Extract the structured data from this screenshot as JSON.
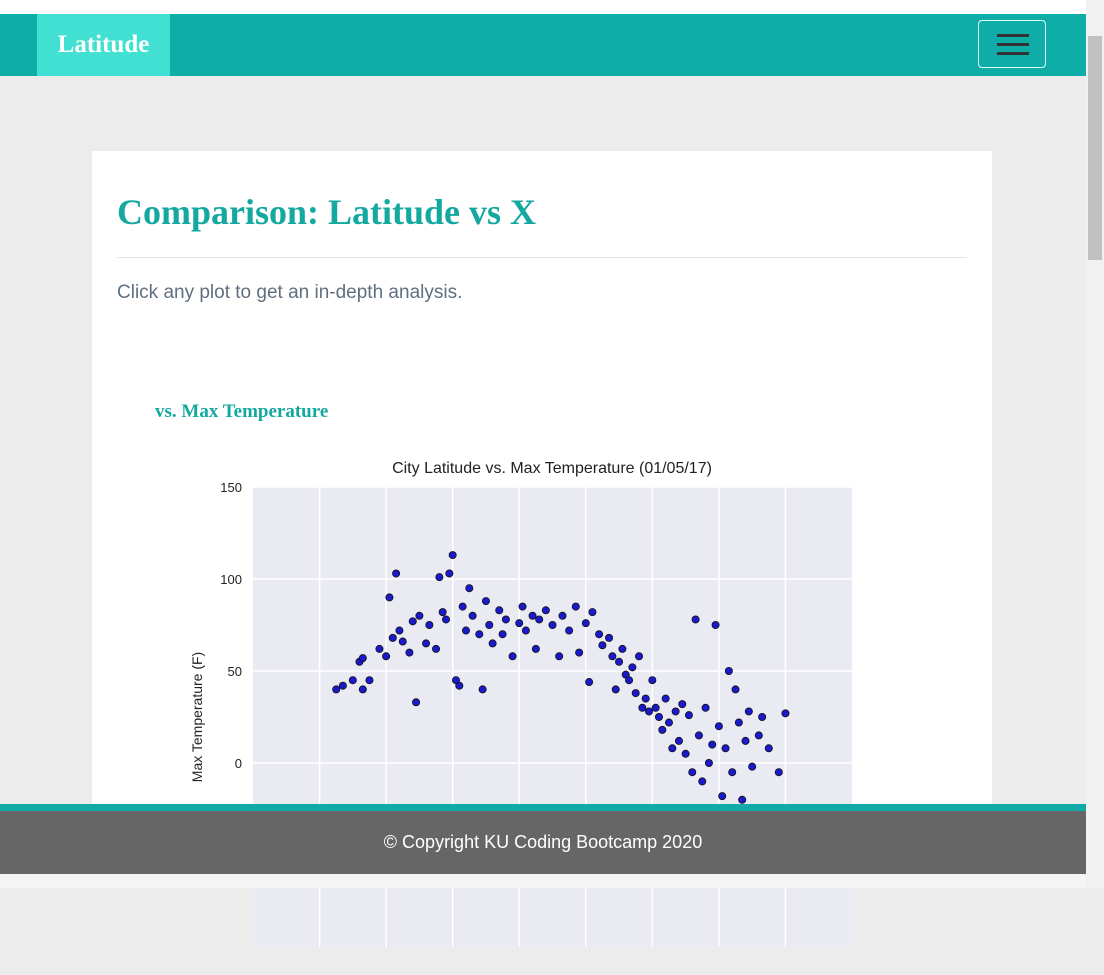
{
  "navbar": {
    "brand": "Latitude"
  },
  "header": {
    "title": "Comparison: Latitude vs X",
    "intro": "Click any plot to get an in-depth analysis."
  },
  "plot": {
    "heading": "vs. Max Temperature"
  },
  "chart_data": {
    "type": "scatter",
    "title": "City Latitude vs. Max Temperature (01/05/17)",
    "y_label": "Max Temperature (F)",
    "x": [
      -55,
      -53,
      -50,
      -48,
      -47,
      -47,
      -45,
      -42,
      -40,
      -39,
      -38,
      -37,
      -36,
      -35,
      -33,
      -32,
      -31,
      -30,
      -28,
      -27,
      -25,
      -24,
      -23,
      -22,
      -21,
      -20,
      -19,
      -18,
      -17,
      -16,
      -15,
      -14,
      -12,
      -11,
      -10,
      -9,
      -8,
      -6,
      -5,
      -4,
      -2,
      0,
      1,
      2,
      4,
      5,
      6,
      8,
      10,
      12,
      13,
      15,
      17,
      18,
      20,
      21,
      22,
      24,
      25,
      27,
      28,
      29,
      30,
      31,
      32,
      33,
      34,
      35,
      36,
      37,
      38,
      39,
      40,
      41,
      42,
      43,
      44,
      45,
      46,
      47,
      48,
      49,
      50,
      51,
      52,
      53,
      54,
      55,
      56,
      57,
      58,
      59,
      60,
      61,
      62,
      63,
      64,
      65,
      66,
      67,
      68,
      69,
      70,
      72,
      73,
      75,
      78,
      80
    ],
    "values": [
      40,
      42,
      45,
      55,
      57,
      40,
      45,
      62,
      58,
      90,
      68,
      103,
      72,
      66,
      60,
      77,
      33,
      80,
      65,
      75,
      62,
      101,
      82,
      78,
      103,
      113,
      45,
      42,
      85,
      72,
      95,
      80,
      70,
      40,
      88,
      75,
      65,
      83,
      70,
      78,
      58,
      76,
      85,
      72,
      80,
      62,
      78,
      83,
      75,
      58,
      80,
      72,
      85,
      60,
      76,
      44,
      82,
      70,
      64,
      68,
      58,
      40,
      55,
      62,
      48,
      45,
      52,
      38,
      58,
      30,
      35,
      28,
      45,
      30,
      25,
      18,
      35,
      22,
      8,
      28,
      12,
      32,
      5,
      26,
      -5,
      78,
      15,
      -10,
      30,
      0,
      10,
      75,
      20,
      -18,
      8,
      50,
      -5,
      40,
      22,
      -20,
      12,
      28,
      -2,
      15,
      25,
      8,
      -5,
      27
    ],
    "color": "#1a1acc",
    "xlim": [
      -80,
      100
    ],
    "xticks": [
      -60,
      -40,
      -20,
      0,
      20,
      40,
      60,
      80
    ],
    "ylim": [
      -100,
      150
    ],
    "yticks": [
      0,
      50,
      100,
      150
    ],
    "grid": true
  },
  "footer": {
    "text": "© Copyright KU Coding Bootcamp 2020"
  }
}
